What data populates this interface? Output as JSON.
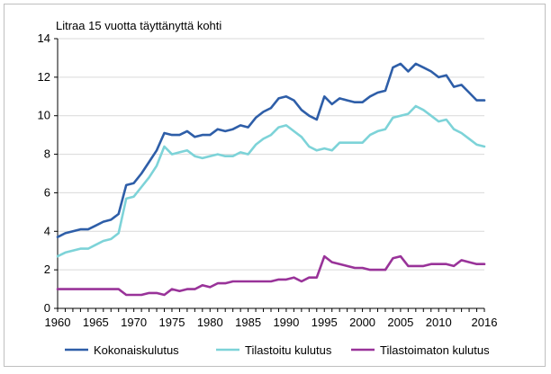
{
  "chart_data": {
    "type": "line",
    "ylabel": "Litraa 15 vuotta täyttänyttä kohti",
    "xlabel": "",
    "xlim": [
      1960,
      2016
    ],
    "ylim": [
      0,
      14
    ],
    "x_ticks": [
      1960,
      1965,
      1970,
      1975,
      1980,
      1985,
      1990,
      1995,
      2000,
      2005,
      2010,
      2016
    ],
    "y_ticks": [
      0,
      2,
      4,
      6,
      8,
      10,
      12,
      14
    ],
    "grid": true,
    "legend_position": "bottom",
    "x": [
      1960,
      1961,
      1962,
      1963,
      1964,
      1965,
      1966,
      1967,
      1968,
      1969,
      1970,
      1971,
      1972,
      1973,
      1974,
      1975,
      1976,
      1977,
      1978,
      1979,
      1980,
      1981,
      1982,
      1983,
      1984,
      1985,
      1986,
      1987,
      1988,
      1989,
      1990,
      1991,
      1992,
      1993,
      1994,
      1995,
      1996,
      1997,
      1998,
      1999,
      2000,
      2001,
      2002,
      2003,
      2004,
      2005,
      2006,
      2007,
      2008,
      2009,
      2010,
      2011,
      2012,
      2013,
      2014,
      2015,
      2016
    ],
    "series": [
      {
        "name": "Kokonaiskulutus",
        "color": "#2e5ea8",
        "values": [
          3.7,
          3.9,
          4.0,
          4.1,
          4.1,
          4.3,
          4.5,
          4.6,
          4.9,
          6.4,
          6.5,
          7.0,
          7.6,
          8.2,
          9.1,
          9.0,
          9.0,
          9.2,
          8.9,
          9.0,
          9.0,
          9.3,
          9.2,
          9.3,
          9.5,
          9.4,
          9.9,
          10.2,
          10.4,
          10.9,
          11.0,
          10.8,
          10.3,
          10.0,
          9.8,
          11.0,
          10.6,
          10.9,
          10.8,
          10.7,
          10.7,
          11.0,
          11.2,
          11.3,
          12.5,
          12.7,
          12.3,
          12.7,
          12.5,
          12.3,
          12.0,
          12.1,
          11.5,
          11.6,
          11.2,
          10.8,
          10.8
        ]
      },
      {
        "name": "Tilastoitu kulutus",
        "color": "#7dd3d8",
        "values": [
          2.7,
          2.9,
          3.0,
          3.1,
          3.1,
          3.3,
          3.5,
          3.6,
          3.9,
          5.7,
          5.8,
          6.3,
          6.8,
          7.4,
          8.4,
          8.0,
          8.1,
          8.2,
          7.9,
          7.8,
          7.9,
          8.0,
          7.9,
          7.9,
          8.1,
          8.0,
          8.5,
          8.8,
          9.0,
          9.4,
          9.5,
          9.2,
          8.9,
          8.4,
          8.2,
          8.3,
          8.2,
          8.6,
          8.6,
          8.6,
          8.6,
          9.0,
          9.2,
          9.3,
          9.9,
          10.0,
          10.1,
          10.5,
          10.3,
          10.0,
          9.7,
          9.8,
          9.3,
          9.1,
          8.8,
          8.5,
          8.4
        ]
      },
      {
        "name": "Tilastoimaton kulutus",
        "color": "#993399",
        "values": [
          1.0,
          1.0,
          1.0,
          1.0,
          1.0,
          1.0,
          1.0,
          1.0,
          1.0,
          0.7,
          0.7,
          0.7,
          0.8,
          0.8,
          0.7,
          1.0,
          0.9,
          1.0,
          1.0,
          1.2,
          1.1,
          1.3,
          1.3,
          1.4,
          1.4,
          1.4,
          1.4,
          1.4,
          1.4,
          1.5,
          1.5,
          1.6,
          1.4,
          1.6,
          1.6,
          2.7,
          2.4,
          2.3,
          2.2,
          2.1,
          2.1,
          2.0,
          2.0,
          2.0,
          2.6,
          2.7,
          2.2,
          2.2,
          2.2,
          2.3,
          2.3,
          2.3,
          2.2,
          2.5,
          2.4,
          2.3,
          2.3
        ]
      }
    ]
  }
}
